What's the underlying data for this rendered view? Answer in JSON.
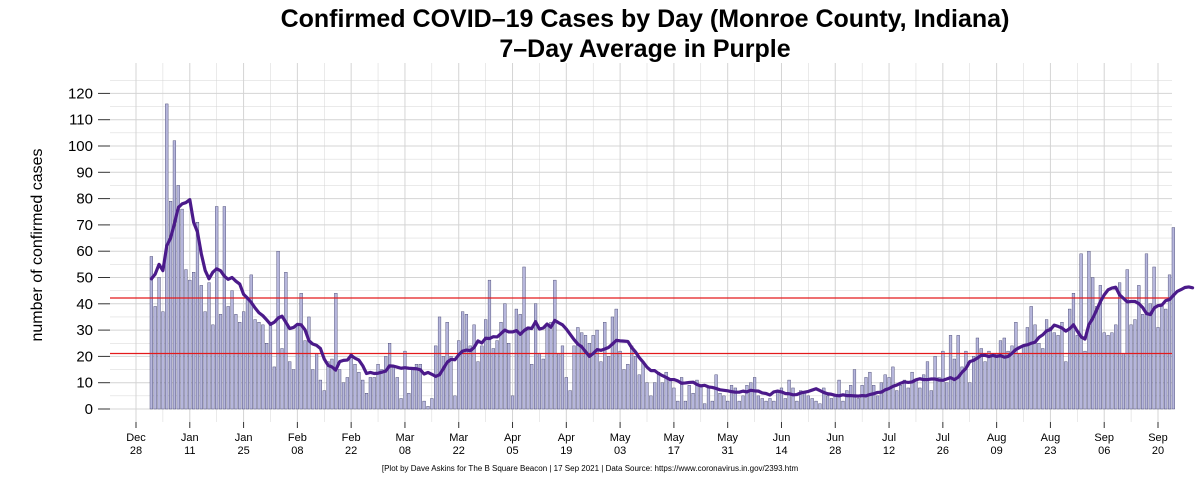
{
  "chart_data": {
    "type": "bar",
    "title": "Confirmed COVID–19 Cases by Day (Monroe County, Indiana)",
    "subtitle": "7–Day Average in Purple",
    "ylabel": "number of confirmed cases",
    "caption": "[Plot by Dave Askins for The B Square Beacon | 17 Sep 2021 | Data Source: https://www.coronavirus.in.gov/2393.htm",
    "x_start_date": "2021-01-01",
    "xlim": [
      "2020-12-28",
      "2021-09-20"
    ],
    "ylim": [
      0,
      125
    ],
    "y_ticks": [
      0,
      10,
      20,
      30,
      40,
      50,
      60,
      70,
      80,
      90,
      100,
      110,
      120
    ],
    "x_ticks": [
      {
        "date": "2020-12-28",
        "month": "Dec",
        "day": "28"
      },
      {
        "date": "2021-01-11",
        "month": "Jan",
        "day": "11"
      },
      {
        "date": "2021-01-25",
        "month": "Jan",
        "day": "25"
      },
      {
        "date": "2021-02-08",
        "month": "Feb",
        "day": "08"
      },
      {
        "date": "2021-02-22",
        "month": "Feb",
        "day": "22"
      },
      {
        "date": "2021-03-08",
        "month": "Mar",
        "day": "08"
      },
      {
        "date": "2021-03-22",
        "month": "Mar",
        "day": "22"
      },
      {
        "date": "2021-04-05",
        "month": "Apr",
        "day": "05"
      },
      {
        "date": "2021-04-19",
        "month": "Apr",
        "day": "19"
      },
      {
        "date": "2021-05-03",
        "month": "May",
        "day": "03"
      },
      {
        "date": "2021-05-17",
        "month": "May",
        "day": "17"
      },
      {
        "date": "2021-05-31",
        "month": "May",
        "day": "31"
      },
      {
        "date": "2021-06-14",
        "month": "Jun",
        "day": "14"
      },
      {
        "date": "2021-06-28",
        "month": "Jun",
        "day": "28"
      },
      {
        "date": "2021-07-12",
        "month": "Jul",
        "day": "12"
      },
      {
        "date": "2021-07-26",
        "month": "Jul",
        "day": "26"
      },
      {
        "date": "2021-08-09",
        "month": "Aug",
        "day": "09"
      },
      {
        "date": "2021-08-23",
        "month": "Aug",
        "day": "23"
      },
      {
        "date": "2021-09-06",
        "month": "Sep",
        "day": "06"
      },
      {
        "date": "2021-09-20",
        "month": "Sep",
        "day": "20"
      }
    ],
    "reference_lines": [
      {
        "y": 42.2,
        "color": "#e31a1c"
      },
      {
        "y": 21.1,
        "color": "#e31a1c"
      }
    ],
    "colors": {
      "bar_fill": "#b6b6dc",
      "bar_stroke": "#3a3a66",
      "average_line": "#4b1a8a",
      "grid": "#d4d4d4"
    },
    "daily_cases": [
      58,
      39,
      50,
      37,
      116,
      79,
      102,
      85,
      76,
      53,
      49,
      52,
      71,
      47,
      37,
      48,
      32,
      77,
      36,
      77,
      39,
      45,
      36,
      33,
      37,
      42,
      51,
      34,
      33,
      32,
      25,
      33,
      16,
      60,
      23,
      52,
      18,
      15,
      32,
      44,
      26,
      35,
      15,
      21,
      11,
      7,
      18,
      19,
      44,
      15,
      10,
      12,
      21,
      17,
      14,
      11,
      6,
      12,
      12,
      17,
      15,
      20,
      25,
      16,
      12,
      4,
      22,
      6,
      15,
      17,
      17,
      3,
      1,
      4,
      24,
      35,
      20,
      33,
      20,
      5,
      26,
      37,
      36,
      24,
      32,
      18,
      24,
      34,
      49,
      23,
      26,
      33,
      40,
      25,
      5,
      38,
      36,
      54,
      30,
      17,
      40,
      21,
      19,
      32,
      33,
      49,
      21,
      24,
      12,
      7,
      24,
      31,
      29,
      28,
      25,
      28,
      30,
      18,
      33,
      20,
      35,
      38,
      22,
      15,
      17,
      24,
      20,
      13,
      18,
      10,
      5,
      10,
      14,
      10,
      14,
      11,
      8,
      3,
      12,
      3,
      9,
      6,
      11,
      9,
      2,
      8,
      3,
      13,
      6,
      5,
      3,
      9,
      8,
      3,
      5,
      9,
      10,
      12,
      5,
      4,
      3,
      4,
      3,
      7,
      8,
      4,
      11,
      8,
      3,
      7,
      6,
      5,
      4,
      3,
      2,
      8,
      5,
      4,
      5,
      11,
      3,
      7,
      9,
      15,
      4,
      9,
      12,
      14,
      9,
      5,
      10,
      13,
      12,
      16,
      7,
      9,
      11,
      8,
      14,
      11,
      8,
      13,
      18,
      7,
      20,
      12,
      22,
      10,
      28,
      19,
      28,
      16,
      22,
      10,
      20,
      27,
      23,
      18,
      22,
      20,
      21,
      26,
      27,
      22,
      24,
      33,
      21,
      24,
      31,
      39,
      32,
      25,
      23,
      34,
      31,
      29,
      28,
      33,
      18,
      38,
      44,
      28,
      59,
      22,
      60,
      50,
      39,
      47,
      29,
      28,
      29,
      32,
      48,
      21,
      53,
      32,
      34,
      47,
      36,
      59,
      40,
      54,
      31,
      40,
      38,
      51,
      69
    ],
    "seven_day_average": [
      49.5,
      51.3,
      55,
      52.6,
      62,
      65,
      70.5,
      76.6,
      78,
      78.5,
      79.6,
      71,
      67.3,
      59,
      52.7,
      49.5,
      52,
      53.3,
      52.6,
      50.5,
      49.3,
      50,
      48.6,
      47.5,
      43.6,
      42.2,
      40.5,
      38.4,
      36.6,
      35.5,
      33.9,
      32.2,
      33,
      34.6,
      35.3,
      33,
      30.6,
      31,
      32.2,
      32,
      30.1,
      26,
      24.7,
      24.2,
      23,
      19,
      16.6,
      16,
      14.8,
      18,
      18.5,
      18.6,
      20.4,
      19.3,
      18.6,
      16.5,
      13.5,
      13.9,
      13.5,
      13.6,
      14,
      14.4,
      16.4,
      16.3,
      15.9,
      15.5,
      15.7,
      15.5,
      15.4,
      15.3,
      14.9,
      13.3,
      13.9,
      13.2,
      12.4,
      13,
      15.4,
      17.8,
      18.9,
      18.7,
      20.6,
      22,
      22.4,
      22.2,
      23.4,
      25.9,
      25.1,
      26.9,
      26.8,
      27.5,
      27.4,
      28.7,
      30,
      29.3,
      29.3,
      29.8,
      28.4,
      29.8,
      30.8,
      30.6,
      33.2,
      30.4,
      30.8,
      32.3,
      31.1,
      33.7,
      32.8,
      32,
      30.4,
      28.4,
      26.4,
      24.7,
      23.7,
      21.8,
      20,
      21.1,
      22.6,
      22.3,
      22.8,
      23.4,
      24.7,
      26.1,
      25.9,
      25.8,
      25.7,
      23.4,
      21.7,
      19.5,
      17.8,
      15.9,
      14.6,
      14.6,
      13.5,
      12.7,
      12,
      11.2,
      11.2,
      10.7,
      9.8,
      9.9,
      10.1,
      10.2,
      9.3,
      8.8,
      9,
      8.4,
      8.2,
      7.8,
      7.3,
      7.1,
      6.9,
      6.6,
      6.4,
      6.4,
      6.8,
      6.5,
      7.1,
      6.9,
      6.8,
      6.1,
      5.9,
      5.3,
      6.5,
      6.8,
      6.5,
      5.9,
      5.8,
      5.4,
      5.5,
      6.1,
      6.4,
      6.7,
      7.2,
      7.7,
      7,
      6.3,
      5.8,
      5.6,
      5.2,
      5,
      5.4,
      5.1,
      5.1,
      5,
      4.9,
      5.1,
      5,
      5.5,
      5.8,
      6.3,
      6.4,
      7.3,
      7.8,
      8.6,
      9.1,
      9.8,
      10.3,
      10.1,
      10.3,
      11.1,
      11.5,
      11.2,
      11.2,
      11.4,
      11.4,
      11,
      10.9,
      11.4,
      11.9,
      11.2,
      12.1,
      14,
      15.4,
      18,
      18.5,
      19.4,
      20.4,
      20.4,
      19.9,
      20.4,
      20,
      20.3,
      19.7,
      20,
      21.2,
      22.6,
      23.4,
      24.1,
      24.4,
      25,
      25.4,
      27.2,
      28.2,
      29.7,
      30.2,
      31.9,
      31.4,
      30.8,
      29.6,
      30.5,
      32,
      29.6,
      27.4,
      26.6,
      32,
      34.4,
      37.6,
      40.8,
      43.4,
      45.3,
      46,
      46.3,
      43.4,
      42.1,
      40.7,
      40.9,
      40.9,
      40.1,
      38.6,
      36.3,
      35.9,
      38.4,
      39.3,
      39.5,
      41.2,
      41.6,
      43.2,
      44.7,
      45.4,
      46.2,
      46.4,
      46.1
    ]
  }
}
